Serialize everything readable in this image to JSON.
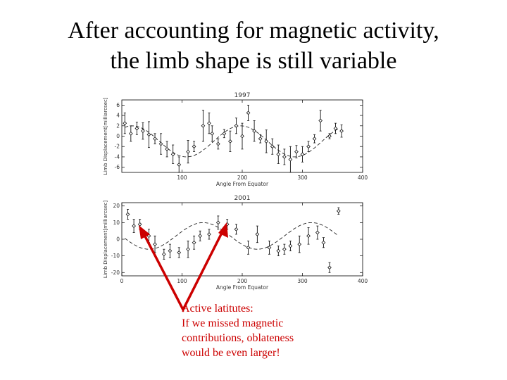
{
  "slide": {
    "title_line1": "After accounting for magnetic activity,",
    "title_line2": "the limb shape is still variable"
  },
  "annotation": {
    "line1": "Active latitutes:",
    "line2": "If we missed magnetic",
    "line3": "contributions,  oblateness",
    "line4": "would be even larger!"
  },
  "colors": {
    "arrow": "#cc0000",
    "annotation_text": "#cc0000",
    "axes": "#000000"
  },
  "chart_data": [
    {
      "type": "scatter",
      "title": "1997",
      "xlabel": "Angle From Equator",
      "ylabel": "Limb Displacement[milliarcsec]",
      "xlim": [
        0,
        400
      ],
      "ylim": [
        -7,
        7
      ],
      "xticks": [
        100,
        200,
        300,
        400
      ],
      "xtick_labels": [
        "100",
        "200",
        "300",
        "400"
      ],
      "yticks": [
        6,
        4,
        2,
        0,
        -2,
        -4,
        -6
      ],
      "ytick_labels": [
        "6",
        "4",
        "2",
        "0",
        "-2",
        "-4",
        "-6"
      ],
      "grid": false,
      "points": [
        {
          "x": 5,
          "y": 2.5,
          "err": 2.0
        },
        {
          "x": 15,
          "y": 0.5,
          "err": 1.5
        },
        {
          "x": 25,
          "y": 1.5,
          "err": 1.2
        },
        {
          "x": 35,
          "y": 1.0,
          "err": 1.6
        },
        {
          "x": 45,
          "y": 0.3,
          "err": 2.5
        },
        {
          "x": 55,
          "y": -0.5,
          "err": 1.0
        },
        {
          "x": 65,
          "y": -1.5,
          "err": 2.0
        },
        {
          "x": 75,
          "y": -2.5,
          "err": 1.5
        },
        {
          "x": 85,
          "y": -3.5,
          "err": 1.8
        },
        {
          "x": 95,
          "y": -5.5,
          "err": 1.5
        },
        {
          "x": 110,
          "y": -3.0,
          "err": 2.2
        },
        {
          "x": 120,
          "y": -2.0,
          "err": 1.0
        },
        {
          "x": 135,
          "y": 2.0,
          "err": 3.0
        },
        {
          "x": 145,
          "y": 2.5,
          "err": 2.0
        },
        {
          "x": 150,
          "y": 0.5,
          "err": 1.5
        },
        {
          "x": 160,
          "y": -1.5,
          "err": 1.0
        },
        {
          "x": 170,
          "y": 0.5,
          "err": 0.8
        },
        {
          "x": 180,
          "y": -1.0,
          "err": 2.0
        },
        {
          "x": 190,
          "y": 2.0,
          "err": 1.5
        },
        {
          "x": 200,
          "y": 0.0,
          "err": 2.5
        },
        {
          "x": 210,
          "y": 4.5,
          "err": 1.5
        },
        {
          "x": 220,
          "y": 1.0,
          "err": 2.0
        },
        {
          "x": 230,
          "y": -0.5,
          "err": 0.8
        },
        {
          "x": 240,
          "y": -1.0,
          "err": 2.2
        },
        {
          "x": 250,
          "y": -2.0,
          "err": 1.5
        },
        {
          "x": 260,
          "y": -3.5,
          "err": 1.8
        },
        {
          "x": 270,
          "y": -4.0,
          "err": 1.5
        },
        {
          "x": 280,
          "y": -4.5,
          "err": 2.5
        },
        {
          "x": 290,
          "y": -3.0,
          "err": 1.2
        },
        {
          "x": 300,
          "y": -3.5,
          "err": 1.5
        },
        {
          "x": 310,
          "y": -2.0,
          "err": 1.0
        },
        {
          "x": 320,
          "y": -0.5,
          "err": 0.8
        },
        {
          "x": 330,
          "y": 3.0,
          "err": 2.0
        },
        {
          "x": 345,
          "y": 0.0,
          "err": 0.5
        },
        {
          "x": 355,
          "y": 1.5,
          "err": 1.0
        },
        {
          "x": 365,
          "y": 1.0,
          "err": 1.2
        }
      ],
      "fit": {
        "model": "sinusoid",
        "mean": -1.0,
        "amplitude": 3.0,
        "phase_deg": -35
      }
    },
    {
      "type": "scatter",
      "title": "2001",
      "xlabel": "Angle From Equator",
      "ylabel": "Limb Displacement[milliarcsec]",
      "xlim": [
        0,
        400
      ],
      "ylim": [
        -22,
        22
      ],
      "xticks": [
        0,
        100,
        200,
        300,
        400
      ],
      "xtick_labels": [
        "0",
        "100",
        "200",
        "300",
        "400"
      ],
      "yticks": [
        20,
        10,
        0,
        -10,
        -20
      ],
      "ytick_labels": [
        "20",
        "10",
        "0",
        "-10",
        "-20"
      ],
      "grid": false,
      "points": [
        {
          "x": 10,
          "y": 15,
          "err": 3
        },
        {
          "x": 20,
          "y": 8,
          "err": 4
        },
        {
          "x": 30,
          "y": 9,
          "err": 3
        },
        {
          "x": 45,
          "y": 2,
          "err": 4
        },
        {
          "x": 55,
          "y": -3,
          "err": 5
        },
        {
          "x": 70,
          "y": -9,
          "err": 3
        },
        {
          "x": 80,
          "y": -7,
          "err": 4
        },
        {
          "x": 95,
          "y": -8,
          "err": 3
        },
        {
          "x": 110,
          "y": -6,
          "err": 5
        },
        {
          "x": 120,
          "y": -2,
          "err": 4
        },
        {
          "x": 130,
          "y": 2,
          "err": 3
        },
        {
          "x": 145,
          "y": 3,
          "err": 3
        },
        {
          "x": 160,
          "y": 10,
          "err": 4
        },
        {
          "x": 175,
          "y": 9,
          "err": 3
        },
        {
          "x": 190,
          "y": 6,
          "err": 3
        },
        {
          "x": 210,
          "y": -5,
          "err": 4
        },
        {
          "x": 225,
          "y": 3,
          "err": 5
        },
        {
          "x": 245,
          "y": -5,
          "err": 4
        },
        {
          "x": 260,
          "y": -7,
          "err": 3
        },
        {
          "x": 270,
          "y": -6,
          "err": 3
        },
        {
          "x": 280,
          "y": -4,
          "err": 3
        },
        {
          "x": 295,
          "y": -3,
          "err": 5
        },
        {
          "x": 310,
          "y": 2,
          "err": 5
        },
        {
          "x": 325,
          "y": 4,
          "err": 4
        },
        {
          "x": 335,
          "y": -2,
          "err": 3
        },
        {
          "x": 345,
          "y": -17,
          "err": 3
        },
        {
          "x": 360,
          "y": 17,
          "err": 2
        }
      ],
      "fit": {
        "model": "sinusoid",
        "mean": 2.0,
        "amplitude": 8.0,
        "phase_deg": 90
      }
    }
  ]
}
